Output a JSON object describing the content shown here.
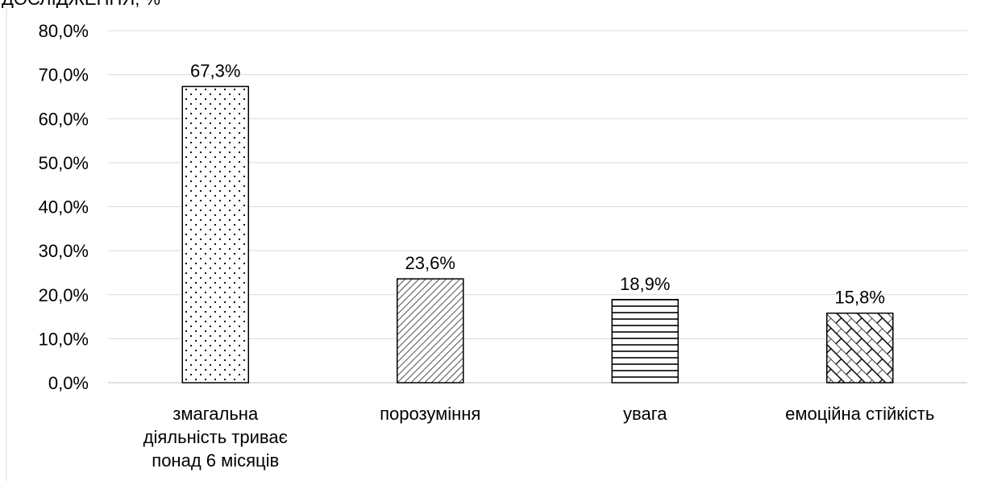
{
  "header": {
    "top_caption_fragment": "ДОСЛІДЖЕННЯ, %"
  },
  "chart_data": {
    "type": "bar",
    "categories": [
      [
        "змагальна",
        "діяльність триває",
        "понад 6 місяців"
      ],
      [
        "порозуміння"
      ],
      [
        "увага"
      ],
      [
        "емоційна стійкість"
      ]
    ],
    "values": [
      67.3,
      23.6,
      18.9,
      15.8
    ],
    "data_labels": [
      "67,3%",
      "23,6%",
      "18,9%",
      "15,8%"
    ],
    "y_ticks": [
      "0,0%",
      "10,0%",
      "20,0%",
      "30,0%",
      "40,0%",
      "50,0%",
      "60,0%",
      "70,0%",
      "80,0%"
    ],
    "ylim": [
      0,
      80
    ],
    "grid": true,
    "legend": "none",
    "patterns": [
      "dots",
      "diagonal-lines",
      "horizontal-lines",
      "crosshatch"
    ],
    "colors": {
      "bar_fill": "#ffffff",
      "bar_stroke": "#000000",
      "grid": "#d9d9d9",
      "axis": "#bfbfbf"
    },
    "title": "",
    "xlabel": "",
    "ylabel": ""
  }
}
